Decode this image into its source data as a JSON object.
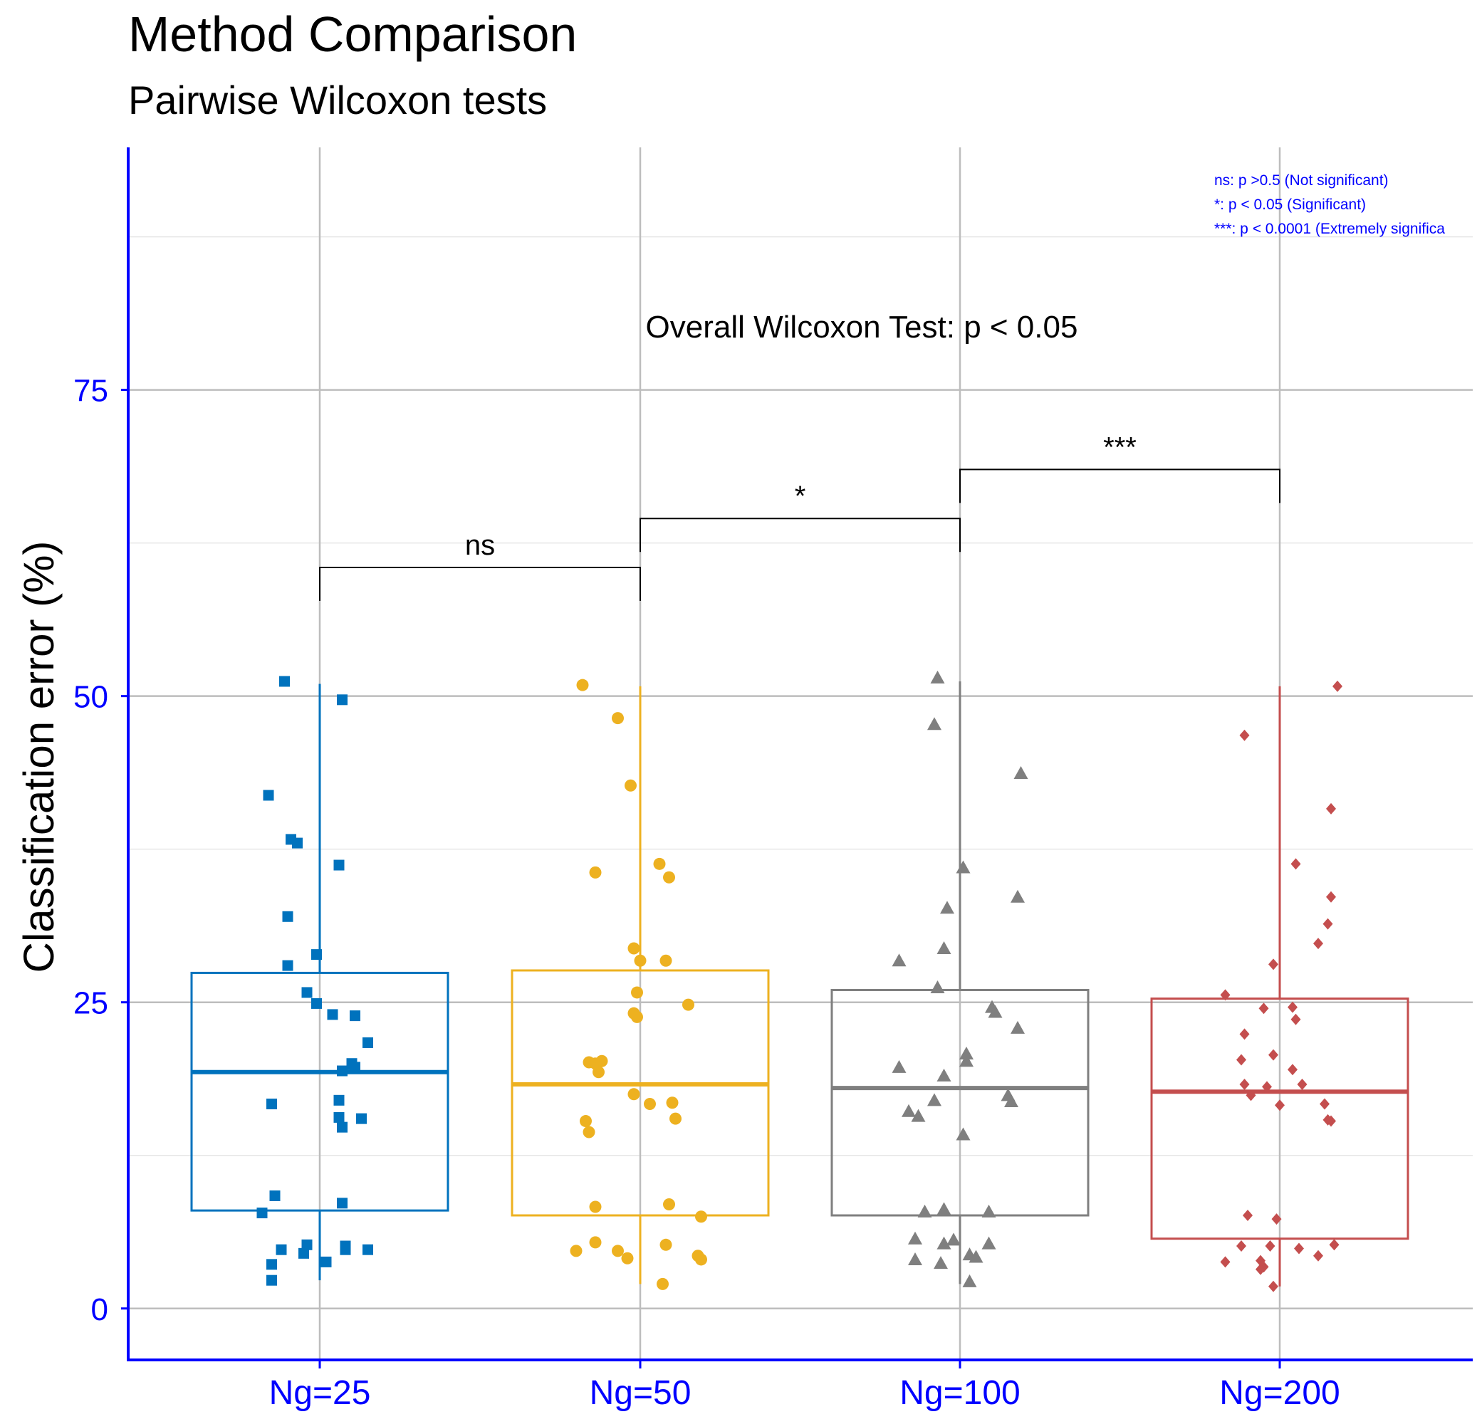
{
  "chart_data": {
    "type": "box",
    "title": "Method Comparison",
    "subtitle": "Pairwise Wilcoxon tests",
    "xlabel": "",
    "ylabel": "Classification error (%)",
    "ylim": [
      -4.2,
      94.8
    ],
    "yticks": [
      0,
      25,
      50,
      75
    ],
    "grid": true,
    "categories": [
      "Ng=25",
      "Ng=50",
      "Ng=100",
      "Ng=200"
    ],
    "colors": [
      "#0072BD",
      "#EDB120",
      "#7F7F7F",
      "#C44E4E"
    ],
    "point_shapes": [
      "square",
      "circle",
      "triangle",
      "diamond"
    ],
    "boxes": [
      {
        "q1": 8.0,
        "median": 19.3,
        "q3": 27.4,
        "whisker_low": 2.3,
        "whisker_high": 51.0
      },
      {
        "q1": 7.6,
        "median": 18.3,
        "q3": 27.6,
        "whisker_low": 2.0,
        "whisker_high": 50.8
      },
      {
        "q1": 7.6,
        "median": 18.0,
        "q3": 26.0,
        "whisker_low": 2.0,
        "whisker_high": 51.2
      },
      {
        "q1": 5.7,
        "median": 17.7,
        "q3": 25.3,
        "whisker_low": 1.8,
        "whisker_high": 50.8
      }
    ],
    "points": [
      {
        "name": "Ng=25",
        "jitter": [
          -0.11,
          0.07,
          -0.16,
          -0.09,
          0.06,
          -0.07,
          -0.1,
          -0.01,
          -0.1,
          -0.04,
          -0.01,
          0.04,
          0.11,
          0.15,
          0.1,
          0.1,
          0.07,
          0.11,
          0.06,
          -0.15,
          0.06,
          0.07,
          0.13,
          0.07,
          -0.14,
          -0.18,
          -0.12,
          0.15,
          0.08,
          -0.04,
          0.08,
          0.02,
          -0.15,
          -0.05,
          -0.15
        ],
        "values": [
          51.2,
          49.7,
          41.9,
          38.3,
          36.2,
          38.0,
          32.0,
          28.9,
          28.0,
          25.8,
          24.9,
          24.0,
          23.9,
          21.7,
          20.0,
          19.9,
          19.4,
          19.7,
          15.6,
          16.7,
          17.0,
          14.8,
          15.5,
          8.6,
          9.2,
          7.8,
          4.8,
          4.8,
          5.1,
          5.2,
          4.8,
          3.8,
          3.6,
          4.5,
          2.3
        ]
      },
      {
        "name": "Ng=50",
        "jitter": [
          -0.18,
          -0.07,
          -0.03,
          -0.14,
          0.06,
          0.09,
          -0.02,
          0.0,
          0.08,
          -0.01,
          0.15,
          -0.02,
          -0.01,
          -0.16,
          -0.14,
          -0.12,
          -0.13,
          -0.02,
          0.03,
          0.1,
          0.11,
          -0.17,
          -0.16,
          -0.14,
          0.09,
          0.19,
          -0.14,
          -0.2,
          -0.07,
          0.08,
          0.18,
          0.19,
          -0.04,
          0.07
        ],
        "values": [
          50.9,
          48.2,
          42.7,
          35.6,
          36.3,
          35.2,
          29.4,
          28.4,
          28.4,
          25.8,
          24.8,
          24.1,
          23.8,
          20.1,
          20.0,
          20.2,
          19.3,
          17.5,
          16.7,
          16.8,
          15.5,
          15.3,
          14.4,
          8.3,
          8.5,
          7.5,
          5.4,
          4.7,
          4.7,
          5.2,
          4.3,
          4.0,
          4.1,
          2.0
        ]
      },
      {
        "name": "Ng=100",
        "jitter": [
          -0.07,
          -0.08,
          0.19,
          0.01,
          0.18,
          -0.19,
          -0.04,
          -0.05,
          -0.07,
          0.1,
          0.11,
          0.18,
          0.02,
          -0.19,
          -0.05,
          0.02,
          -0.08,
          0.15,
          0.16,
          -0.13,
          0.01,
          -0.16,
          -0.05,
          -0.11,
          0.09,
          0.09,
          -0.02,
          -0.14,
          -0.05,
          0.05,
          -0.14,
          -0.06,
          0.03,
          0.03
        ],
        "values": [
          51.5,
          47.7,
          43.7,
          36.0,
          33.6,
          28.4,
          32.7,
          29.4,
          26.2,
          24.6,
          24.2,
          22.9,
          20.8,
          19.7,
          19.0,
          20.2,
          17.0,
          17.4,
          16.9,
          15.7,
          14.2,
          16.1,
          8.1,
          7.9,
          7.9,
          5.3,
          5.6,
          5.7,
          5.3,
          4.2,
          4.0,
          3.7,
          4.4,
          2.2
        ]
      },
      {
        "name": "Ng=200",
        "jitter": [
          0.18,
          -0.11,
          0.16,
          0.05,
          0.16,
          0.15,
          0.12,
          -0.02,
          -0.17,
          -0.05,
          0.05,
          0.04,
          -0.11,
          -0.12,
          -0.02,
          0.04,
          0.07,
          -0.04,
          -0.11,
          -0.09,
          0.0,
          0.14,
          0.15,
          0.16,
          -0.1,
          -0.01,
          -0.12,
          0.17,
          -0.03,
          0.06,
          -0.17,
          0.12,
          -0.06,
          -0.05,
          -0.06,
          -0.02
        ],
        "values": [
          50.8,
          46.8,
          40.8,
          36.3,
          33.6,
          31.4,
          29.8,
          28.1,
          25.6,
          24.5,
          23.6,
          24.6,
          22.4,
          20.3,
          20.7,
          19.5,
          18.3,
          18.1,
          18.3,
          17.4,
          16.6,
          16.7,
          15.4,
          15.3,
          7.6,
          7.3,
          5.1,
          5.2,
          5.1,
          4.9,
          3.8,
          4.3,
          3.9,
          3.4,
          3.2,
          1.8
        ]
      }
    ],
    "comparisons": [
      {
        "from": "Ng=25",
        "to": "Ng=50",
        "label": "ns",
        "y": 60.5
      },
      {
        "from": "Ng=50",
        "to": "Ng=100",
        "label": "*",
        "y": 64.5
      },
      {
        "from": "Ng=100",
        "to": "Ng=200",
        "label": "***",
        "y": 68.5
      }
    ],
    "overall_label": "Overall Wilcoxon Test: p < 0.05",
    "notes": [
      "ns: p >0.5 (Not significant)",
      "*: p < 0.05 (Significant)",
      "***: p < 0.0001 (Extremely significa"
    ]
  }
}
